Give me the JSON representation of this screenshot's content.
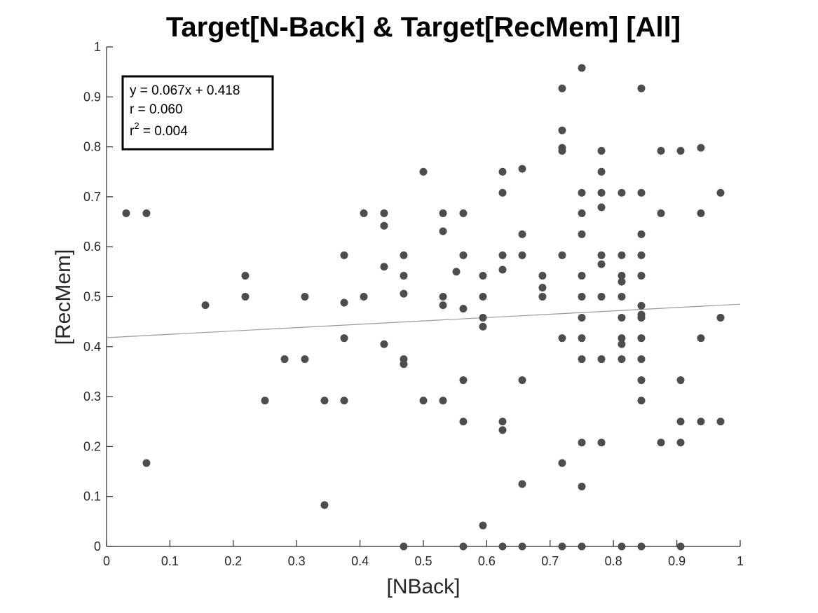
{
  "chart_data": {
    "type": "scatter",
    "title": "Target[N-Back] & Target[RecMem] [All]",
    "xlabel": "[NBack]",
    "ylabel": "[RecMem]",
    "xlim": [
      0,
      1
    ],
    "ylim": [
      0,
      1
    ],
    "xticks": [
      "0",
      "0.1",
      "0.2",
      "0.3",
      "0.4",
      "0.5",
      "0.6",
      "0.7",
      "0.8",
      "0.9",
      "1"
    ],
    "yticks": [
      "0",
      "0.1",
      "0.2",
      "0.3",
      "0.4",
      "0.5",
      "0.6",
      "0.7",
      "0.8",
      "0.9",
      "1"
    ],
    "grid": false,
    "marker_color": "#4d4d4d",
    "fit_line_color": "#999999",
    "fit": {
      "slope": 0.067,
      "intercept": 0.418
    },
    "annotation": {
      "line1": "y = 0.067x + 0.418",
      "line2": "r = 0.060",
      "line3_base": "r",
      "line3_sup": "2",
      "line3_rest": " = 0.004",
      "placement": "top-left"
    },
    "points": [
      [
        0.031,
        0.667
      ],
      [
        0.063,
        0.667
      ],
      [
        0.063,
        0.167
      ],
      [
        0.156,
        0.483
      ],
      [
        0.219,
        0.542
      ],
      [
        0.219,
        0.5
      ],
      [
        0.25,
        0.292
      ],
      [
        0.281,
        0.375
      ],
      [
        0.313,
        0.5
      ],
      [
        0.313,
        0.375
      ],
      [
        0.344,
        0.292
      ],
      [
        0.344,
        0.083
      ],
      [
        0.375,
        0.583
      ],
      [
        0.375,
        0.488
      ],
      [
        0.375,
        0.417
      ],
      [
        0.375,
        0.292
      ],
      [
        0.406,
        0.667
      ],
      [
        0.406,
        0.5
      ],
      [
        0.438,
        0.667
      ],
      [
        0.438,
        0.642
      ],
      [
        0.438,
        0.56
      ],
      [
        0.438,
        0.405
      ],
      [
        0.469,
        0.583
      ],
      [
        0.469,
        0.542
      ],
      [
        0.469,
        0.506
      ],
      [
        0.469,
        0.375
      ],
      [
        0.469,
        0.365
      ],
      [
        0.469,
        0.0
      ],
      [
        0.5,
        0.75
      ],
      [
        0.5,
        0.292
      ],
      [
        0.531,
        0.667
      ],
      [
        0.531,
        0.631
      ],
      [
        0.531,
        0.5
      ],
      [
        0.531,
        0.483
      ],
      [
        0.531,
        0.292
      ],
      [
        0.552,
        0.55
      ],
      [
        0.563,
        0.667
      ],
      [
        0.563,
        0.583
      ],
      [
        0.563,
        0.476
      ],
      [
        0.563,
        0.333
      ],
      [
        0.563,
        0.25
      ],
      [
        0.563,
        0.0
      ],
      [
        0.594,
        0.542
      ],
      [
        0.594,
        0.5
      ],
      [
        0.594,
        0.458
      ],
      [
        0.594,
        0.44
      ],
      [
        0.594,
        0.042
      ],
      [
        0.625,
        0.75
      ],
      [
        0.625,
        0.708
      ],
      [
        0.625,
        0.583
      ],
      [
        0.625,
        0.554
      ],
      [
        0.625,
        0.25
      ],
      [
        0.625,
        0.233
      ],
      [
        0.625,
        0.0
      ],
      [
        0.656,
        0.756
      ],
      [
        0.656,
        0.625
      ],
      [
        0.656,
        0.583
      ],
      [
        0.656,
        0.333
      ],
      [
        0.656,
        0.125
      ],
      [
        0.656,
        0.0
      ],
      [
        0.688,
        0.542
      ],
      [
        0.688,
        0.518
      ],
      [
        0.688,
        0.5
      ],
      [
        0.719,
        0.917
      ],
      [
        0.719,
        0.833
      ],
      [
        0.719,
        0.798
      ],
      [
        0.719,
        0.792
      ],
      [
        0.719,
        0.583
      ],
      [
        0.719,
        0.417
      ],
      [
        0.719,
        0.167
      ],
      [
        0.719,
        0.0
      ],
      [
        0.75,
        0.958
      ],
      [
        0.75,
        0.708
      ],
      [
        0.75,
        0.667
      ],
      [
        0.75,
        0.625
      ],
      [
        0.75,
        0.542
      ],
      [
        0.75,
        0.5
      ],
      [
        0.75,
        0.458
      ],
      [
        0.75,
        0.417
      ],
      [
        0.75,
        0.375
      ],
      [
        0.75,
        0.208
      ],
      [
        0.75,
        0.12
      ],
      [
        0.75,
        0.0
      ],
      [
        0.781,
        0.792
      ],
      [
        0.781,
        0.75
      ],
      [
        0.781,
        0.708
      ],
      [
        0.781,
        0.679
      ],
      [
        0.781,
        0.583
      ],
      [
        0.781,
        0.565
      ],
      [
        0.781,
        0.5
      ],
      [
        0.781,
        0.375
      ],
      [
        0.781,
        0.208
      ],
      [
        0.813,
        0.708
      ],
      [
        0.813,
        0.583
      ],
      [
        0.813,
        0.542
      ],
      [
        0.813,
        0.53
      ],
      [
        0.813,
        0.5
      ],
      [
        0.813,
        0.458
      ],
      [
        0.813,
        0.417
      ],
      [
        0.813,
        0.405
      ],
      [
        0.813,
        0.375
      ],
      [
        0.813,
        0.0
      ],
      [
        0.844,
        0.917
      ],
      [
        0.844,
        0.708
      ],
      [
        0.844,
        0.625
      ],
      [
        0.844,
        0.583
      ],
      [
        0.844,
        0.542
      ],
      [
        0.844,
        0.482
      ],
      [
        0.844,
        0.464
      ],
      [
        0.844,
        0.458
      ],
      [
        0.844,
        0.417
      ],
      [
        0.844,
        0.375
      ],
      [
        0.844,
        0.333
      ],
      [
        0.844,
        0.292
      ],
      [
        0.844,
        0.0
      ],
      [
        0.875,
        0.792
      ],
      [
        0.875,
        0.667
      ],
      [
        0.875,
        0.208
      ],
      [
        0.906,
        0.792
      ],
      [
        0.906,
        0.333
      ],
      [
        0.906,
        0.25
      ],
      [
        0.906,
        0.208
      ],
      [
        0.906,
        0.0
      ],
      [
        0.938,
        0.798
      ],
      [
        0.938,
        0.667
      ],
      [
        0.938,
        0.417
      ],
      [
        0.938,
        0.25
      ],
      [
        0.969,
        0.708
      ],
      [
        0.969,
        0.458
      ],
      [
        0.969,
        0.25
      ]
    ]
  }
}
